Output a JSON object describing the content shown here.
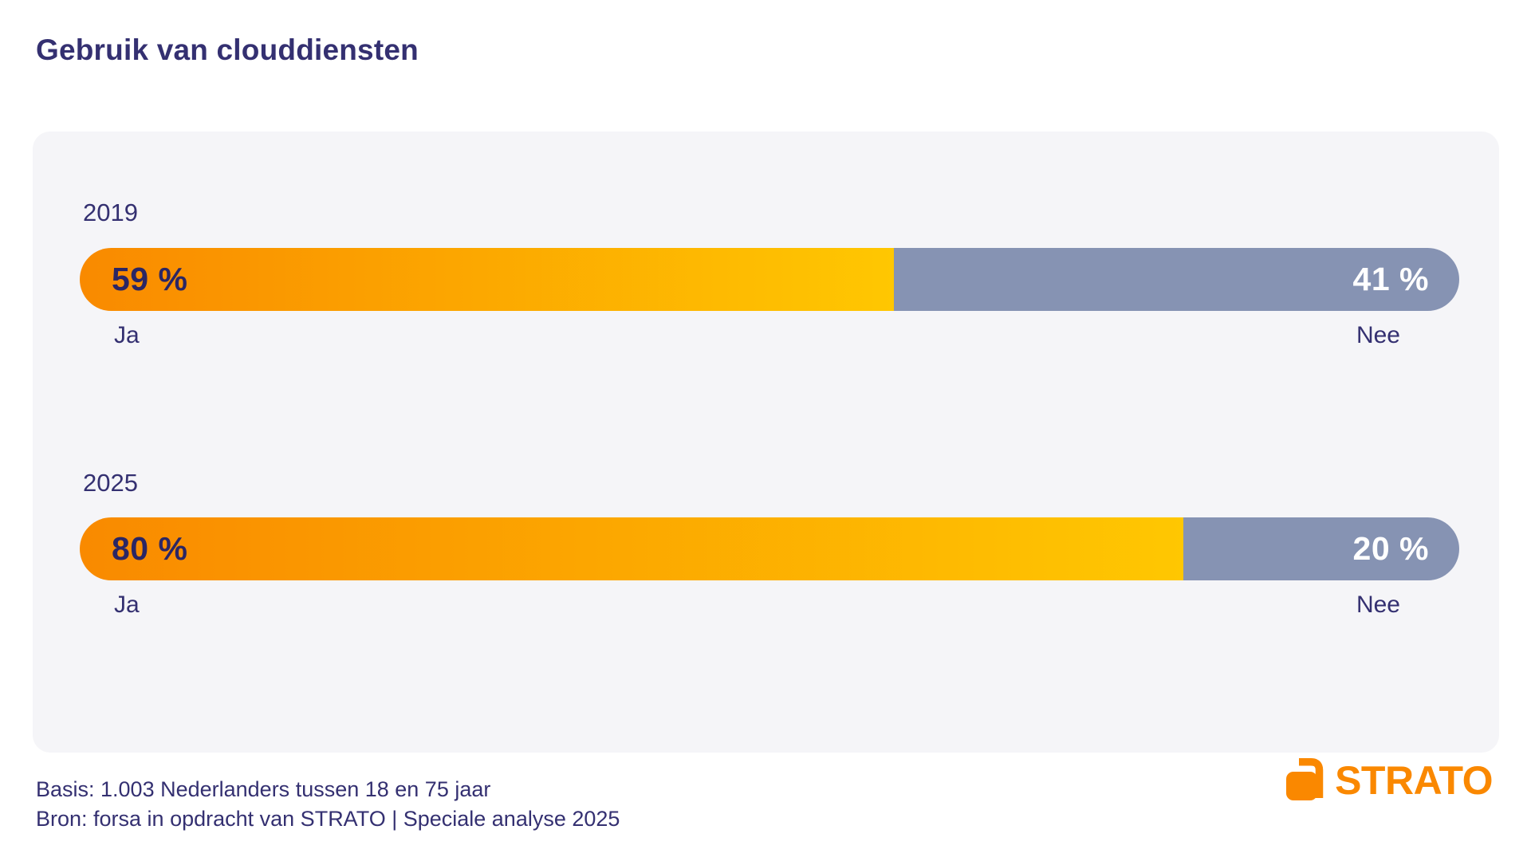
{
  "title": "Gebruik van clouddiensten",
  "chart_data": {
    "type": "bar",
    "orientation": "horizontal-stacked",
    "title": "Gebruik van clouddiensten",
    "categories": [
      "2019",
      "2025"
    ],
    "series": [
      {
        "name": "Ja",
        "values": [
          59,
          80
        ]
      },
      {
        "name": "Nee",
        "values": [
          41,
          20
        ]
      }
    ],
    "unit": "%",
    "xlim": [
      0,
      100
    ],
    "grid": false,
    "legend_position": "below-bars",
    "value_labels": [
      "59 %",
      "41 %",
      "80 %",
      "20 %"
    ]
  },
  "rows": [
    {
      "year": "2019",
      "yes": {
        "value": 59,
        "label": "59 %",
        "sub": "Ja"
      },
      "no": {
        "value": 41,
        "label": "41 %",
        "sub": "Nee"
      }
    },
    {
      "year": "2025",
      "yes": {
        "value": 80,
        "label": "80 %",
        "sub": "Ja"
      },
      "no": {
        "value": 20,
        "label": "20 %",
        "sub": "Nee"
      }
    }
  ],
  "footer": {
    "line1": "Basis: 1.003 Nederlanders tussen 18 en 75 jaar",
    "line2": "Bron: forsa in opdracht van STRATO | Speciale analyse 2025"
  },
  "logo": {
    "text": "STRATO"
  },
  "colors": {
    "navy": "#343071",
    "pct_navy": "#2B2664",
    "panel": "#F5F5F8",
    "ja_start": "#F98A00",
    "ja_end": "#FFC701",
    "nee": "#8693B3",
    "logo_orange": "#FA8800"
  }
}
